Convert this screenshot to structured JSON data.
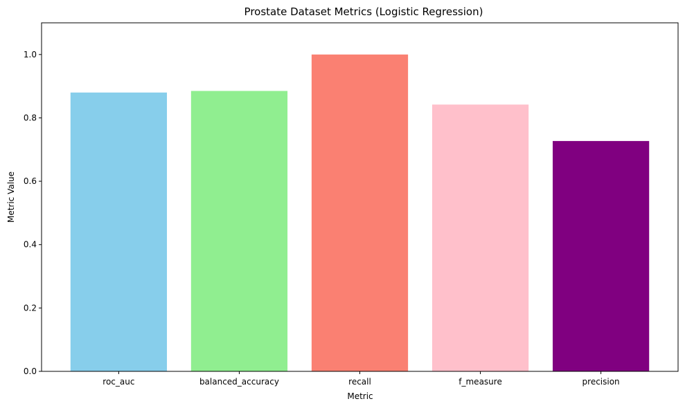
{
  "chart_data": {
    "type": "bar",
    "title": "Prostate Dataset Metrics (Logistic Regression)",
    "xlabel": "Metric",
    "ylabel": "Metric Value",
    "categories": [
      "roc_auc",
      "balanced_accuracy",
      "recall",
      "f_measure",
      "precision"
    ],
    "values": [
      0.88,
      0.885,
      1.0,
      0.842,
      0.727
    ],
    "colors": [
      "#87CEEB",
      "#90EE90",
      "#FA8072",
      "#FFC0CB",
      "#800080"
    ],
    "ylim": [
      0,
      1.1
    ],
    "yticks": [
      "0.0",
      "0.2",
      "0.4",
      "0.6",
      "0.8",
      "1.0"
    ],
    "grid": false,
    "legend": "none"
  }
}
